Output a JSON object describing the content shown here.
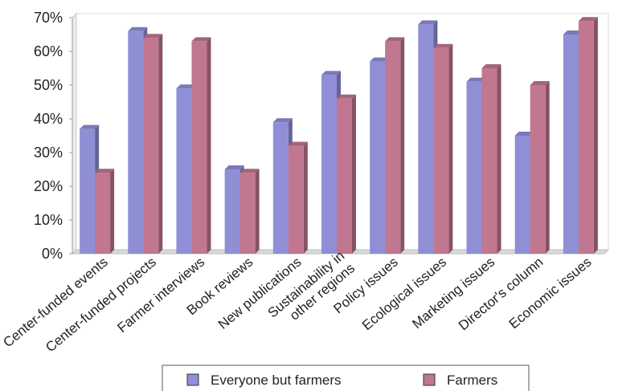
{
  "chart_data": {
    "type": "bar",
    "categories": [
      "Center-funded events",
      "Center-funded projects",
      "Farmer interviews",
      "Book reviews",
      "New publications",
      "Sustainability in other regions",
      "Policy issues",
      "Ecological issues",
      "Marketing issues",
      "Director's column",
      "Economic issues"
    ],
    "category_label_lines": [
      [
        "Center-funded events"
      ],
      [
        "Center-funded projects"
      ],
      [
        "Farmer interviews"
      ],
      [
        "Book reviews"
      ],
      [
        "New publications"
      ],
      [
        "Sustainability in",
        "other regions"
      ],
      [
        "Policy issues"
      ],
      [
        "Ecological issues"
      ],
      [
        "Marketing issues"
      ],
      [
        "Director's column"
      ],
      [
        "Economic issues"
      ]
    ],
    "series": [
      {
        "name": "Everyone but farmers",
        "color": "#8f8fd6",
        "values": [
          37,
          66,
          49,
          25,
          39,
          53,
          57,
          68,
          51,
          35,
          65
        ]
      },
      {
        "name": "Farmers",
        "color": "#c0778f",
        "values": [
          24,
          64,
          63,
          24,
          32,
          46,
          63,
          61,
          55,
          50,
          69
        ]
      }
    ],
    "y_ticks": [
      "0%",
      "10%",
      "20%",
      "30%",
      "40%",
      "50%",
      "60%",
      "70%"
    ],
    "ylim": [
      0,
      70
    ],
    "grid": false,
    "legend_position": "bottom",
    "title": "",
    "xlabel": "",
    "ylabel": ""
  }
}
